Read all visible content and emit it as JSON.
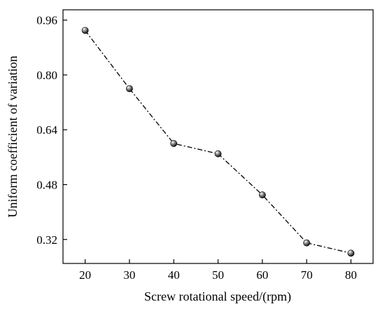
{
  "chart_data": {
    "type": "line",
    "xlabel": "Screw rotational speed/(rpm)",
    "ylabel": "Uniform coefficient of variation",
    "xlim": [
      15,
      85
    ],
    "ylim": [
      0.25,
      0.99
    ],
    "x_ticks": [
      20,
      30,
      40,
      50,
      60,
      70,
      80
    ],
    "y_ticks": [
      0.32,
      0.48,
      0.64,
      0.8,
      0.96
    ],
    "y_tick_labels": [
      "0.32",
      "0.48",
      "0.64",
      "0.80",
      "0.96"
    ],
    "series": [
      {
        "x": [
          20,
          30,
          40,
          50,
          60,
          70,
          80
        ],
        "values": [
          0.93,
          0.76,
          0.6,
          0.57,
          0.45,
          0.31,
          0.28
        ],
        "line_style": "dash-dot",
        "marker": "sphere",
        "color": "#000000"
      }
    ],
    "grid": false,
    "legend": "none"
  }
}
